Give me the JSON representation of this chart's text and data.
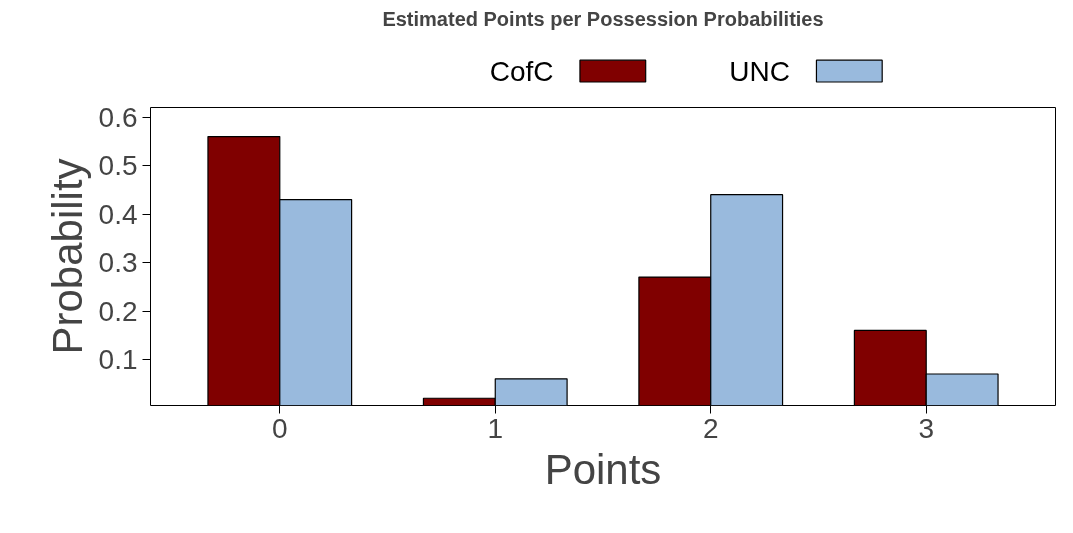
{
  "chart_data": {
    "type": "bar",
    "title": "Estimated Points per Possession Probabilities",
    "xlabel": "Points",
    "ylabel": "Probability",
    "categories": [
      "0",
      "1",
      "2",
      "3"
    ],
    "series": [
      {
        "name": "CofC",
        "color": "#800000",
        "values": [
          0.56,
          0.02,
          0.27,
          0.16
        ]
      },
      {
        "name": "UNC",
        "color": "#99badd",
        "values": [
          0.43,
          0.06,
          0.44,
          0.07
        ]
      }
    ],
    "ylim": [
      0.005,
      0.62
    ],
    "yticks": [
      0.1,
      0.2,
      0.3,
      0.4,
      0.5,
      0.6
    ],
    "grid": false,
    "legend": "top"
  }
}
